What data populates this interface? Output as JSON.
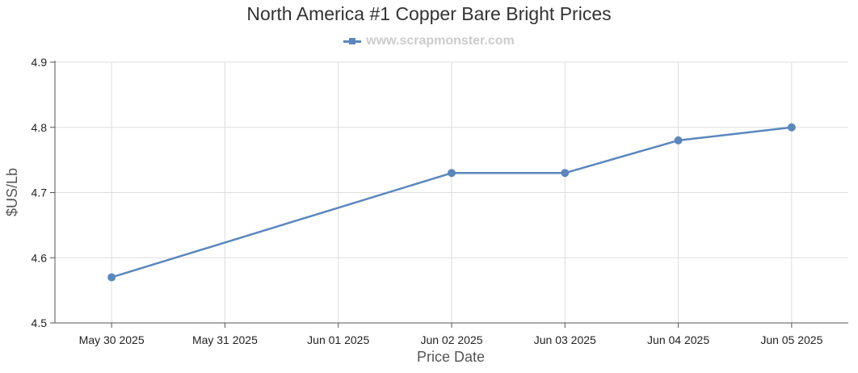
{
  "chart_data": {
    "type": "line",
    "title": "North America #1 Copper Bare Bright Prices",
    "legend": "www.scrapmonster.com",
    "xlabel": "Price Date",
    "ylabel": "$US/Lb",
    "categories": [
      "May 30 2025",
      "May 31 2025",
      "Jun 01 2025",
      "Jun 02 2025",
      "Jun 03 2025",
      "Jun 04 2025",
      "Jun 05 2025"
    ],
    "series": [
      {
        "name": "www.scrapmonster.com",
        "points": [
          {
            "x": "May 30 2025",
            "y": 4.57
          },
          {
            "x": "Jun 02 2025",
            "y": 4.73
          },
          {
            "x": "Jun 03 2025",
            "y": 4.73
          },
          {
            "x": "Jun 04 2025",
            "y": 4.78
          },
          {
            "x": "Jun 05 2025",
            "y": 4.8
          }
        ]
      }
    ],
    "ylim": [
      4.5,
      4.9
    ],
    "yticks": [
      "4.5",
      "4.6",
      "4.7",
      "4.8",
      "4.9"
    ],
    "grid": true,
    "legend_position": "top-center",
    "colors": {
      "series": "#5b87bd",
      "grid": "#dddddd",
      "axis": "#555555",
      "legend_text": "#cccccc"
    }
  }
}
